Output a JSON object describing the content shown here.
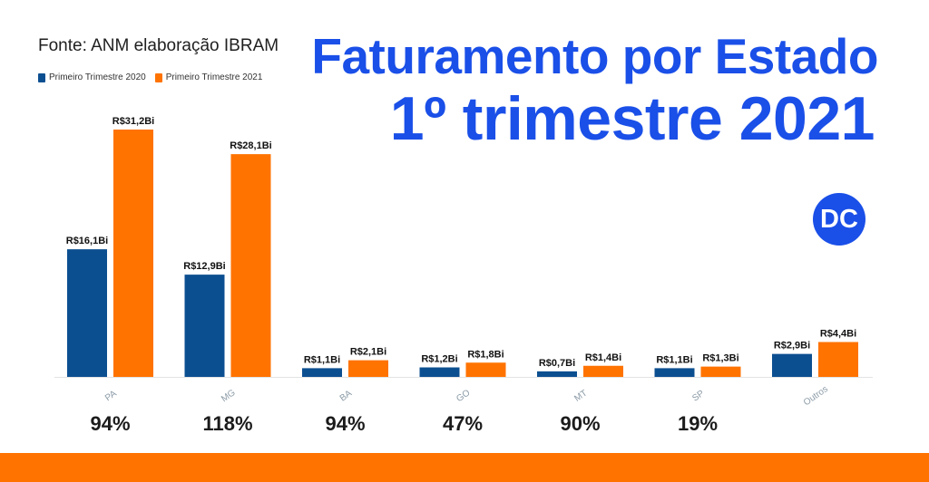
{
  "source": "Fonte: ANM elaboração IBRAM",
  "title_line1": "Faturamento por Estado",
  "title_line2": "1º trimestre 2021",
  "logo_text": "DC",
  "colors": {
    "series2020": "#0c4f91",
    "series2021": "#ff7300",
    "title": "#1a4fe8",
    "band": "#ff7300"
  },
  "percentages": [
    "94%",
    "118%",
    "94%",
    "47%",
    "90%",
    "19%"
  ],
  "chart_data": {
    "type": "bar",
    "categories": [
      "PA",
      "MG",
      "BA",
      "GO",
      "MT",
      "SP",
      "Outros"
    ],
    "series": [
      {
        "name": "Primeiro Trimestre 2020",
        "color": "#0c4f91",
        "values": [
          16.1,
          12.9,
          1.1,
          1.2,
          0.7,
          1.1,
          2.9
        ],
        "labels": [
          "R$16,1Bi",
          "R$12,9Bi",
          "R$1,1Bi",
          "R$1,2Bi",
          "R$0,7Bi",
          "R$1,1Bi",
          "R$2,9Bi"
        ]
      },
      {
        "name": "Primeiro Trimestre 2021",
        "color": "#ff7300",
        "values": [
          31.2,
          28.1,
          2.1,
          1.8,
          1.4,
          1.3,
          4.4
        ],
        "labels": [
          "R$31,2Bi",
          "R$28,1Bi",
          "R$2,1Bi",
          "R$1,8Bi",
          "R$1,4Bi",
          "R$1,3Bi",
          "R$4,4Bi"
        ]
      }
    ],
    "ylim": [
      0,
      31.2
    ],
    "grid": false,
    "legend": "top-left"
  }
}
